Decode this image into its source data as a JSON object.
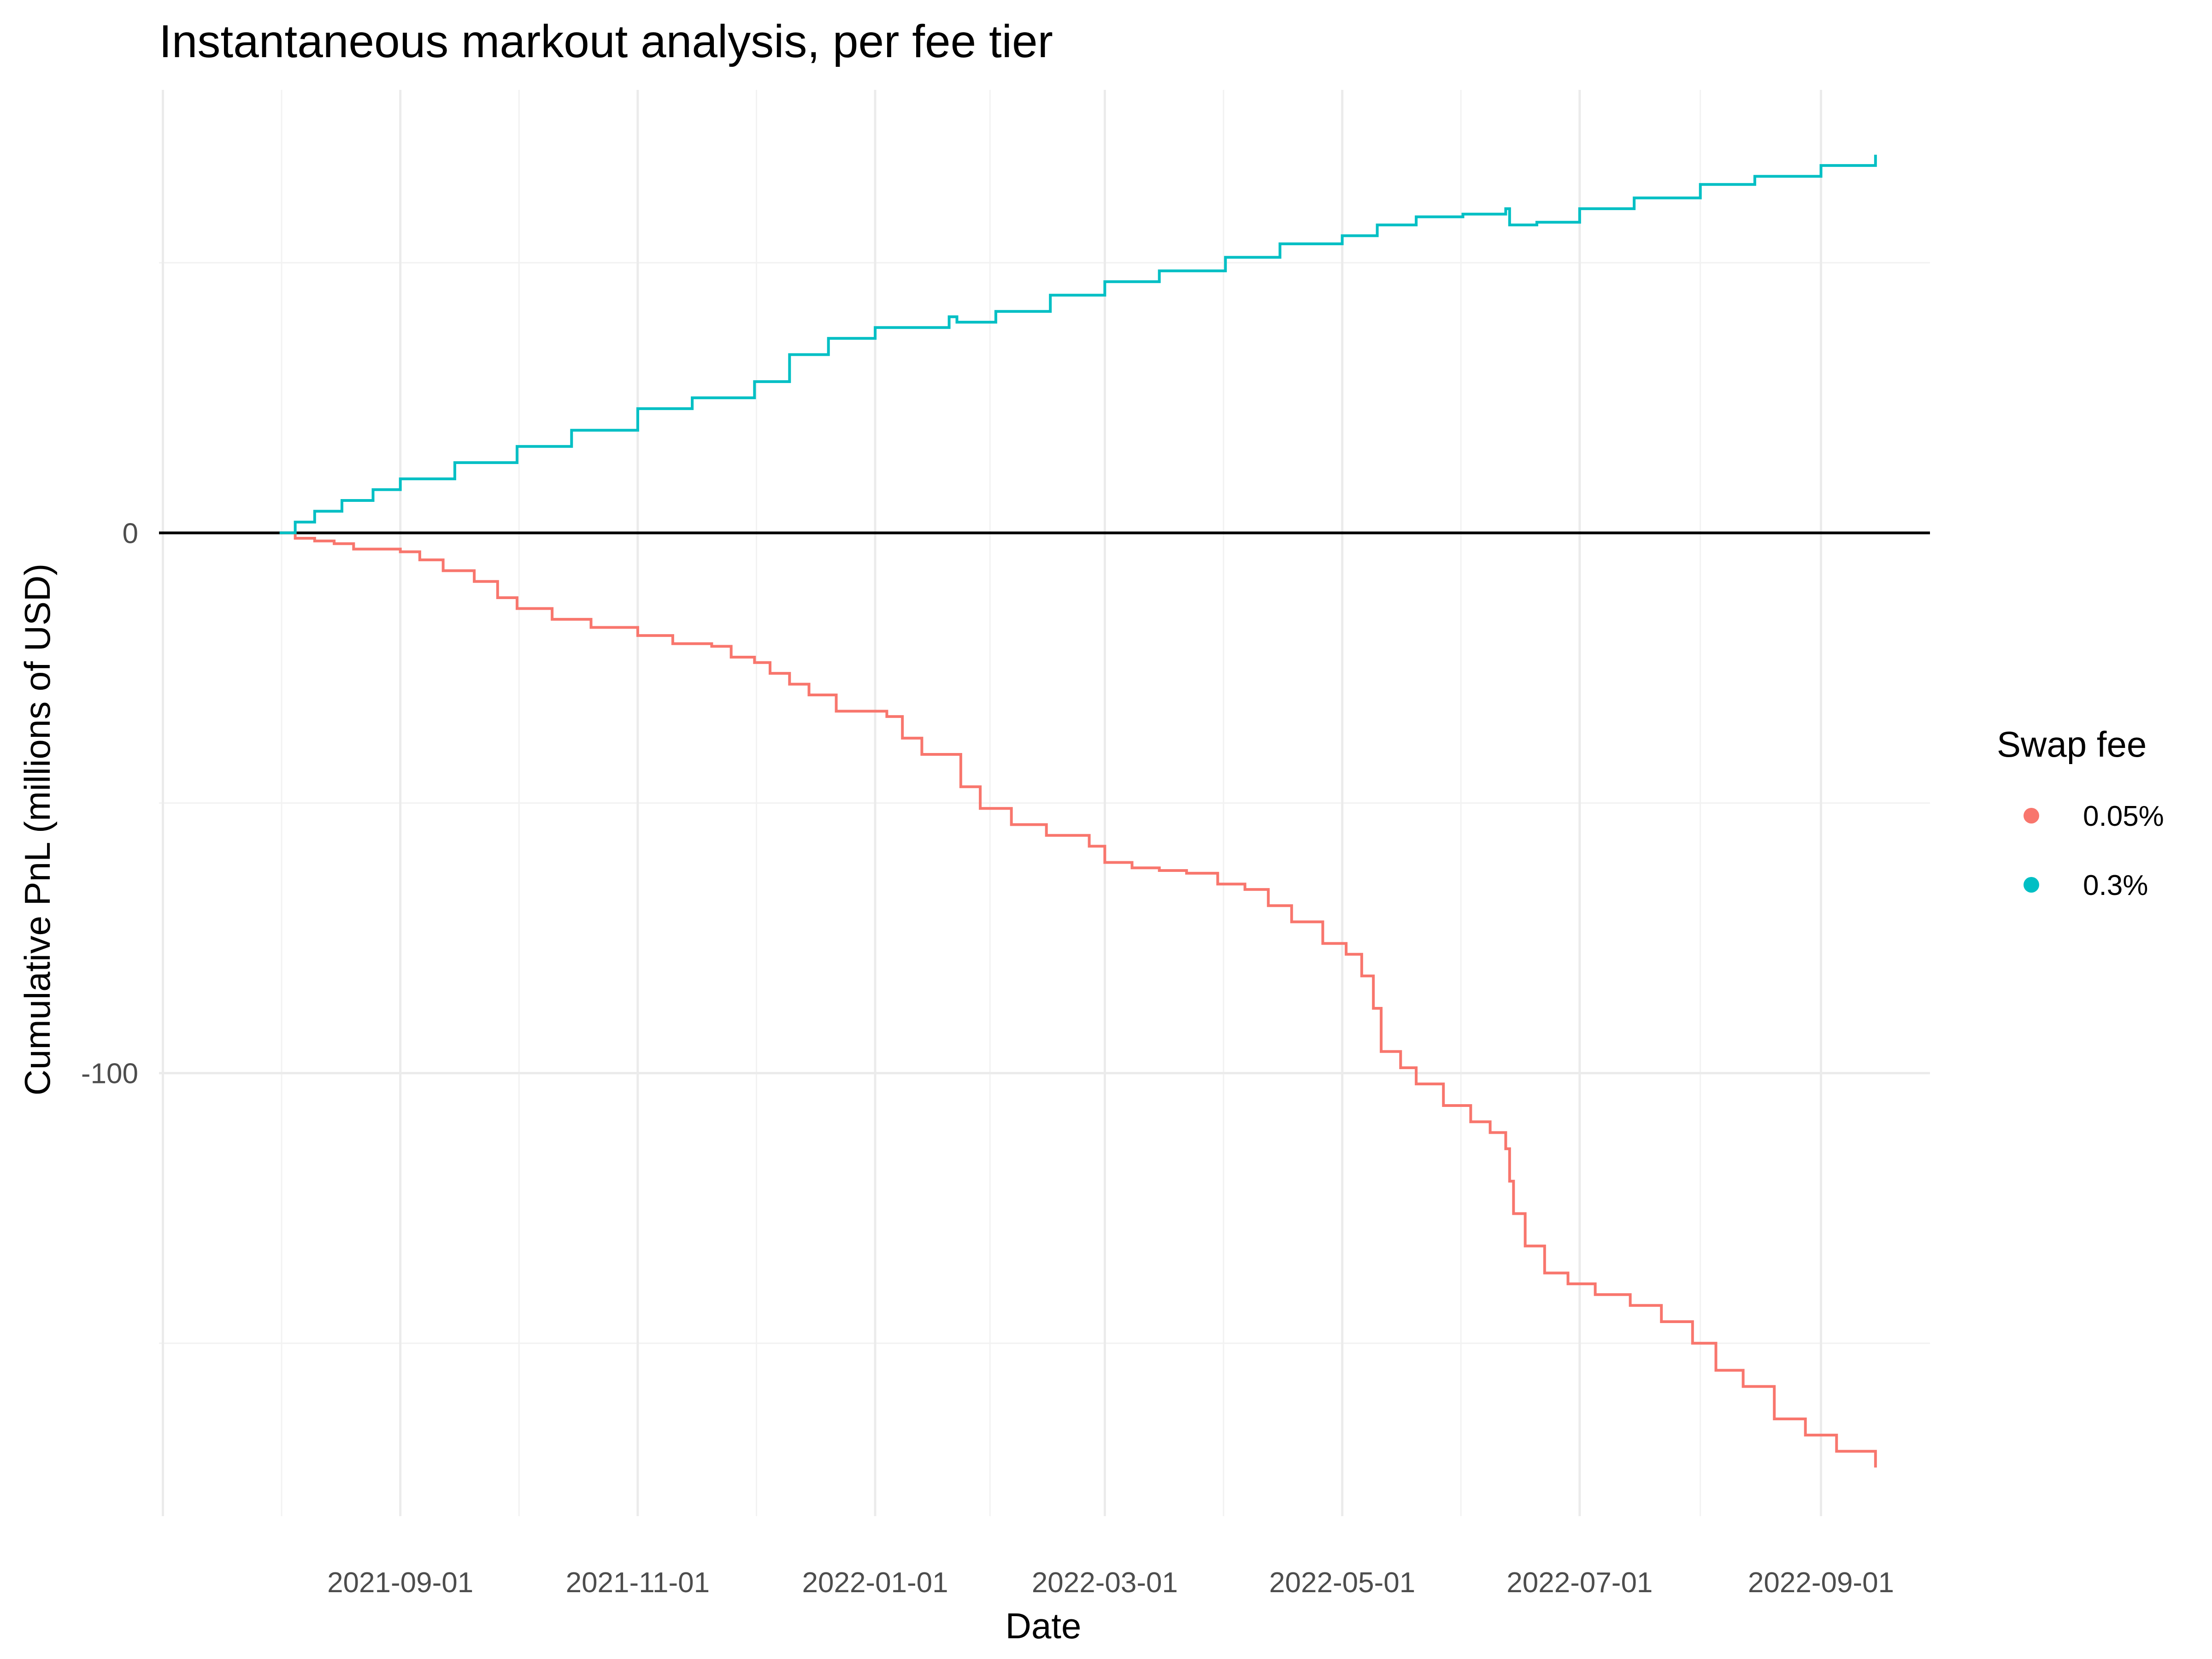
{
  "chart_data": {
    "type": "line",
    "title": "Instantaneous markout analysis, per fee tier",
    "xlabel": "Date",
    "ylabel": "Cumulative PnL (millions of USD)",
    "x_ticks": [
      "2021-09-01",
      "2021-11-01",
      "2022-01-01",
      "2022-03-01",
      "2022-05-01",
      "2022-07-01",
      "2022-09-01"
    ],
    "y_ticks": [
      0,
      -100
    ],
    "xlim": [
      "2021-07-01",
      "2022-09-29"
    ],
    "ylim": [
      -182,
      82
    ],
    "grid": true,
    "reference_line_y": 0,
    "legend": {
      "title": "Swap fee",
      "placement": "right"
    },
    "series": [
      {
        "name": "0.05%",
        "color": "#f8766d",
        "points": [
          [
            "2021-08-01",
            0
          ],
          [
            "2021-08-05",
            -1
          ],
          [
            "2021-08-10",
            -1.5
          ],
          [
            "2021-08-15",
            -2
          ],
          [
            "2021-08-20",
            -3
          ],
          [
            "2021-09-01",
            -3.5
          ],
          [
            "2021-09-06",
            -5
          ],
          [
            "2021-09-12",
            -7
          ],
          [
            "2021-09-20",
            -9
          ],
          [
            "2021-09-26",
            -12
          ],
          [
            "2021-10-01",
            -14
          ],
          [
            "2021-10-10",
            -16
          ],
          [
            "2021-10-20",
            -17.5
          ],
          [
            "2021-11-01",
            -19
          ],
          [
            "2021-11-10",
            -20.5
          ],
          [
            "2021-11-20",
            -21
          ],
          [
            "2021-11-25",
            -23
          ],
          [
            "2021-12-01",
            -24
          ],
          [
            "2021-12-05",
            -26
          ],
          [
            "2021-12-10",
            -28
          ],
          [
            "2021-12-15",
            -30
          ],
          [
            "2021-12-22",
            -33
          ],
          [
            "2021-12-30",
            -33
          ],
          [
            "2022-01-04",
            -34
          ],
          [
            "2022-01-08",
            -38
          ],
          [
            "2022-01-13",
            -41
          ],
          [
            "2022-01-20",
            -41
          ],
          [
            "2022-01-23",
            -47
          ],
          [
            "2022-01-28",
            -51
          ],
          [
            "2022-02-05",
            -54
          ],
          [
            "2022-02-14",
            -56
          ],
          [
            "2022-02-25",
            -58
          ],
          [
            "2022-03-01",
            -61
          ],
          [
            "2022-03-08",
            -62
          ],
          [
            "2022-03-15",
            -62.5
          ],
          [
            "2022-03-22",
            -63
          ],
          [
            "2022-03-30",
            -65
          ],
          [
            "2022-04-06",
            -66
          ],
          [
            "2022-04-12",
            -69
          ],
          [
            "2022-04-18",
            -72
          ],
          [
            "2022-04-26",
            -76
          ],
          [
            "2022-05-02",
            -78
          ],
          [
            "2022-05-06",
            -82
          ],
          [
            "2022-05-09",
            -88
          ],
          [
            "2022-05-11",
            -96
          ],
          [
            "2022-05-16",
            -99
          ],
          [
            "2022-05-20",
            -102
          ],
          [
            "2022-05-27",
            -106
          ],
          [
            "2022-06-03",
            -109
          ],
          [
            "2022-06-08",
            -111
          ],
          [
            "2022-06-12",
            -114
          ],
          [
            "2022-06-13",
            -120
          ],
          [
            "2022-06-14",
            -126
          ],
          [
            "2022-06-17",
            -132
          ],
          [
            "2022-06-22",
            -137
          ],
          [
            "2022-06-28",
            -139
          ],
          [
            "2022-07-05",
            -141
          ],
          [
            "2022-07-14",
            -143
          ],
          [
            "2022-07-22",
            -146
          ],
          [
            "2022-07-30",
            -150
          ],
          [
            "2022-08-05",
            -155
          ],
          [
            "2022-08-12",
            -158
          ],
          [
            "2022-08-20",
            -164
          ],
          [
            "2022-08-28",
            -167
          ],
          [
            "2022-09-05",
            -170
          ],
          [
            "2022-09-15",
            -173
          ]
        ]
      },
      {
        "name": "0.3%",
        "color": "#00bfc4",
        "points": [
          [
            "2021-08-01",
            0
          ],
          [
            "2021-08-05",
            2
          ],
          [
            "2021-08-10",
            4
          ],
          [
            "2021-08-17",
            6
          ],
          [
            "2021-08-25",
            8
          ],
          [
            "2021-09-01",
            10
          ],
          [
            "2021-09-15",
            13
          ],
          [
            "2021-10-01",
            16
          ],
          [
            "2021-10-15",
            19
          ],
          [
            "2021-11-01",
            23
          ],
          [
            "2021-11-15",
            25
          ],
          [
            "2021-12-01",
            28
          ],
          [
            "2021-12-10",
            33
          ],
          [
            "2021-12-20",
            36
          ],
          [
            "2022-01-01",
            38
          ],
          [
            "2022-01-20",
            40
          ],
          [
            "2022-01-22",
            39
          ],
          [
            "2022-02-01",
            41
          ],
          [
            "2022-02-15",
            44
          ],
          [
            "2022-03-01",
            46.5
          ],
          [
            "2022-03-15",
            48.5
          ],
          [
            "2022-04-01",
            51
          ],
          [
            "2022-04-15",
            53.5
          ],
          [
            "2022-05-01",
            55
          ],
          [
            "2022-05-10",
            57
          ],
          [
            "2022-05-20",
            58.5
          ],
          [
            "2022-06-01",
            59
          ],
          [
            "2022-06-12",
            60
          ],
          [
            "2022-06-13",
            57
          ],
          [
            "2022-06-20",
            57.5
          ],
          [
            "2022-07-01",
            60
          ],
          [
            "2022-07-15",
            62
          ],
          [
            "2022-08-01",
            64.5
          ],
          [
            "2022-08-15",
            66
          ],
          [
            "2022-09-01",
            68
          ],
          [
            "2022-09-15",
            70
          ]
        ]
      }
    ]
  }
}
